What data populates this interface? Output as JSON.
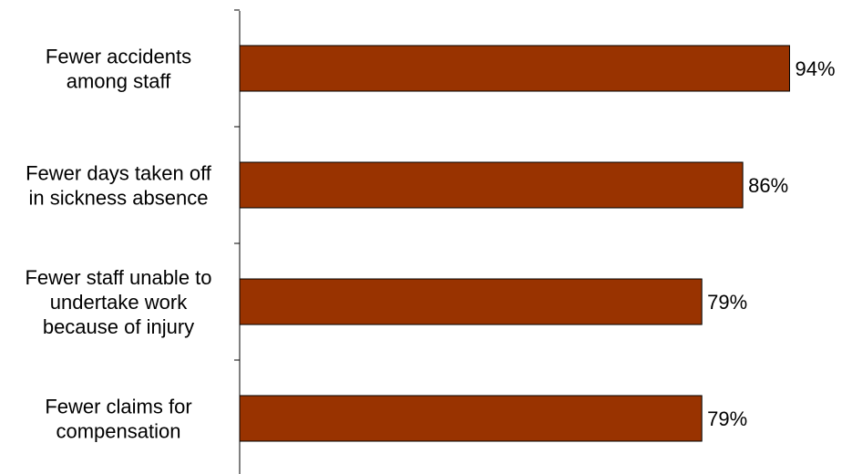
{
  "chart_data": {
    "type": "bar",
    "orientation": "horizontal",
    "categories": [
      [
        "Fewer accidents",
        "among staff"
      ],
      [
        "Fewer days taken off",
        "in sickness absence"
      ],
      [
        "Fewer staff unable to",
        "undertake work",
        "because of injury"
      ],
      [
        "Fewer claims for",
        "compensation"
      ]
    ],
    "values": [
      94,
      86,
      79,
      79
    ],
    "value_labels": [
      "94%",
      "86%",
      "79%",
      "79%"
    ],
    "title": "",
    "xlabel": "",
    "ylabel": "",
    "xlim": [
      0,
      102
    ],
    "grid": false,
    "legend": "none",
    "bar_color": "#993300"
  }
}
